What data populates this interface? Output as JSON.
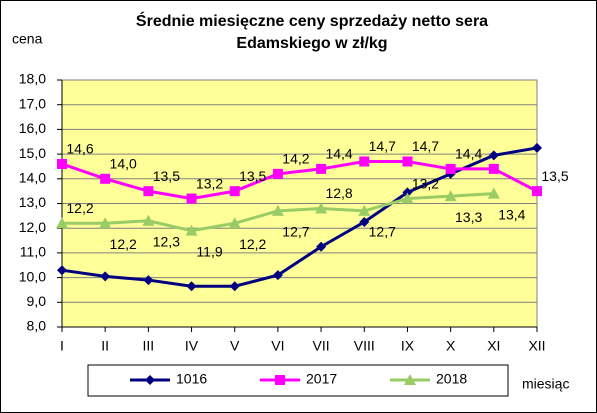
{
  "chart_data": {
    "type": "line",
    "title": [
      "Średnie miesięczne ceny sprzedaży netto sera",
      "Edamskiego w zł/kg"
    ],
    "y_label": "cena",
    "x_label": "miesiąc",
    "categories": [
      "I",
      "II",
      "III",
      "IV",
      "V",
      "VI",
      "VII",
      "VIII",
      "IX",
      "X",
      "XI",
      "XII"
    ],
    "ylim": [
      8,
      18
    ],
    "yticks": [
      {
        "value": 8,
        "label": "8,0"
      },
      {
        "value": 9,
        "label": "9,0"
      },
      {
        "value": 10,
        "label": "10,0"
      },
      {
        "value": 11,
        "label": "11,0"
      },
      {
        "value": 12,
        "label": "12,0"
      },
      {
        "value": 13,
        "label": "13,0"
      },
      {
        "value": 14,
        "label": "14,0"
      },
      {
        "value": 15,
        "label": "15,0"
      },
      {
        "value": 16,
        "label": "16,0"
      },
      {
        "value": 17,
        "label": "17,0"
      },
      {
        "value": 18,
        "label": "18,0"
      }
    ],
    "grid": true,
    "background": "#ffff99",
    "legend": "bottom",
    "series": [
      {
        "name": "1016",
        "color": "#000080",
        "marker": "diamond",
        "values": [
          10.3,
          10.05,
          9.9,
          9.65,
          9.65,
          10.1,
          11.25,
          12.25,
          13.45,
          14.2,
          14.95,
          15.25
        ]
      },
      {
        "name": "2017",
        "color": "#ff00ff",
        "marker": "square",
        "values": [
          14.6,
          14.0,
          13.5,
          13.2,
          13.5,
          14.2,
          14.4,
          14.7,
          14.7,
          14.4,
          14.4,
          13.5
        ],
        "value_labels": [
          "14,6",
          "14,0",
          "13,5",
          "13,2",
          "13,5",
          "14,2",
          "14,4",
          "14,7",
          "14,7",
          "14,4",
          null,
          "13,5"
        ]
      },
      {
        "name": "2018",
        "color": "#99cc66",
        "marker": "triangle",
        "values": [
          12.2,
          12.2,
          12.3,
          11.9,
          12.2,
          12.7,
          12.8,
          12.7,
          13.2,
          13.3,
          13.4,
          null
        ],
        "value_labels": [
          "12,2",
          "12,2",
          "12,3",
          "11,9",
          "12,2",
          "12,7",
          "12,8",
          "12,7",
          "13,2",
          "13,3",
          "13,4",
          null
        ]
      }
    ]
  }
}
